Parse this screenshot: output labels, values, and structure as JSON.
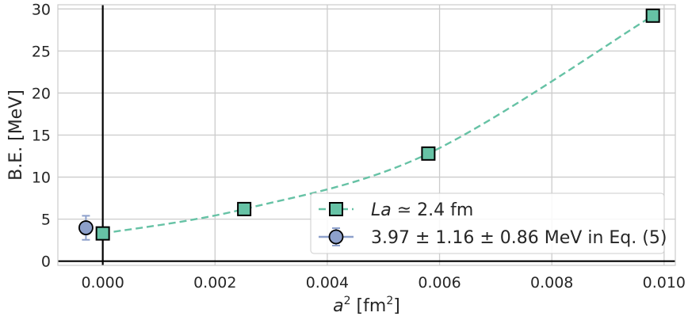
{
  "chart_data": {
    "type": "scatter",
    "xlabel": {
      "base": "a",
      "sup": "2",
      "unit_open": " [fm",
      "unit_sup": "2",
      "unit_close": "]"
    },
    "ylabel": "B.E. [MeV]",
    "xlim": [
      -0.0008,
      0.0102
    ],
    "ylim": [
      -0.5,
      30.5
    ],
    "xticks": [
      0.0,
      0.002,
      0.004,
      0.006,
      0.008,
      0.01
    ],
    "xtick_labels": [
      "0.000",
      "0.002",
      "0.004",
      "0.006",
      "0.008",
      "0.010"
    ],
    "yticks": [
      0,
      5,
      10,
      15,
      20,
      25,
      30
    ],
    "ytick_labels": [
      "0",
      "5",
      "10",
      "15",
      "20",
      "25",
      "30"
    ],
    "grid": true,
    "legend_position": "bottom-right",
    "reference_lines": {
      "x": 0,
      "y": 0
    },
    "series": [
      {
        "label_italic": "La",
        "label_rest": " ≃ 2.4 fm",
        "marker": "square",
        "line": "dashed",
        "color": "#66c2a5",
        "points": [
          {
            "x": 0.0,
            "y": 3.3
          },
          {
            "x": 0.00252,
            "y": 6.2
          },
          {
            "x": 0.0058,
            "y": 12.8
          },
          {
            "x": 0.0098,
            "y": 29.2
          }
        ]
      },
      {
        "label_rest": "3.97 ± 1.16 ± 0.86 MeV in Eq. (5)",
        "marker": "circle",
        "line": "solid",
        "color": "#8da0cb",
        "points": [
          {
            "x": -0.0003,
            "y": 3.97,
            "err_low": 1.43,
            "err_high": 1.43
          }
        ]
      }
    ]
  }
}
